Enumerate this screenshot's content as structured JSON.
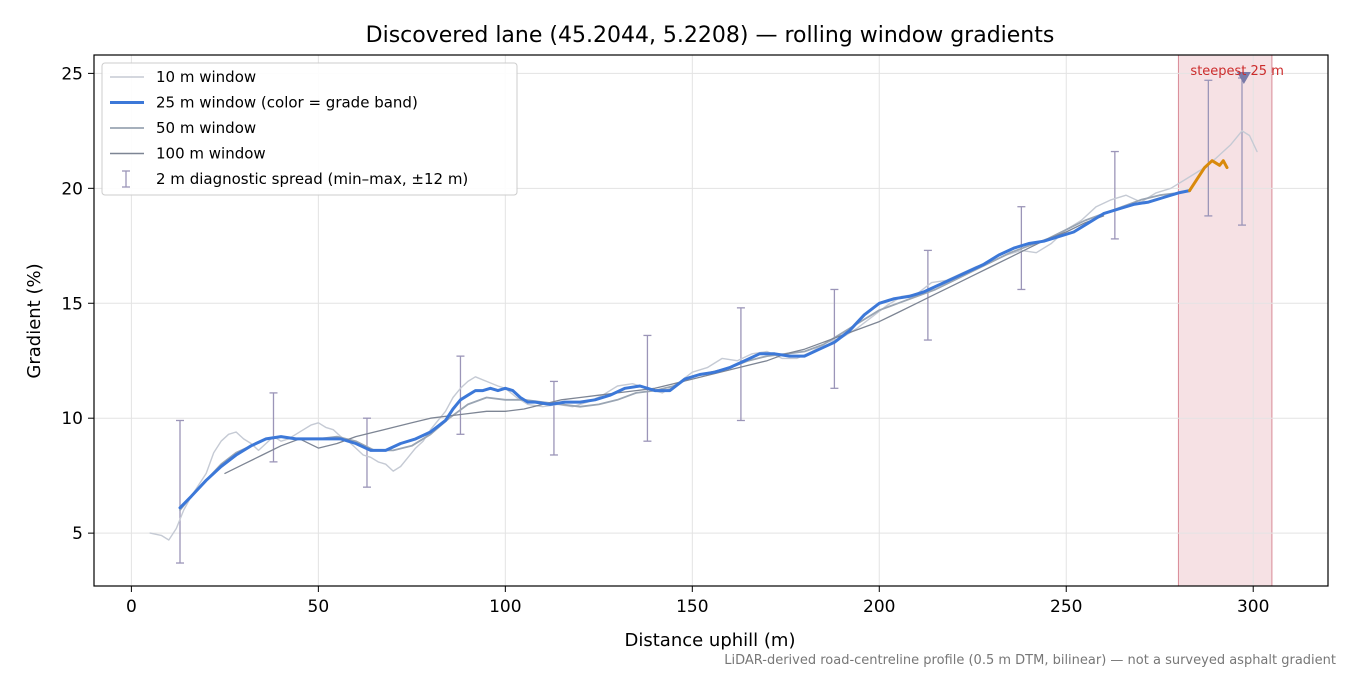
{
  "chart_data": {
    "type": "line",
    "title": "Discovered lane (45.2044, 5.2208) — rolling window gradients",
    "xlabel": "Distance uphill (m)",
    "ylabel": "Gradient (%)",
    "xlim": [
      -10,
      320
    ],
    "ylim": [
      2.7,
      25.8
    ],
    "xticks": [
      0,
      50,
      100,
      150,
      200,
      250,
      300
    ],
    "yticks": [
      5,
      10,
      15,
      20,
      25
    ],
    "grid": true,
    "legend_position": "top-left",
    "footnote": "LiDAR-derived road-centreline profile (0.5 m DTM, bilinear) — not a surveyed asphalt gradient",
    "highlight": {
      "x_start": 280,
      "x_end": 305,
      "label": "steepest 25 m",
      "marker_x": 297.5,
      "marker_y": 24.8,
      "color": "#e9b3bb",
      "label_color": "#cc2b2b"
    },
    "legend": [
      {
        "label": "10 m window",
        "style": "thin-light"
      },
      {
        "label": "25 m window (color = grade band)",
        "style": "thick-blue"
      },
      {
        "label": "50 m window",
        "style": "medium-gray"
      },
      {
        "label": "100 m window",
        "style": "dark-gray"
      },
      {
        "label": "2 m diagnostic spread (min–max, ±12 m)",
        "style": "errorbar"
      }
    ],
    "series": [
      {
        "name": "10 m window",
        "color": "#c5cad4",
        "x": [
          5,
          8,
          10,
          12,
          14,
          16,
          18,
          20,
          22,
          24,
          26,
          28,
          30,
          32,
          34,
          36,
          38,
          40,
          42,
          44,
          46,
          48,
          50,
          52,
          54,
          56,
          58,
          60,
          62,
          64,
          66,
          68,
          70,
          72,
          74,
          76,
          78,
          80,
          82,
          84,
          86,
          88,
          90,
          92,
          95,
          98,
          100,
          103,
          106,
          110,
          114,
          118,
          122,
          126,
          130,
          134,
          138,
          142,
          146,
          150,
          154,
          158,
          162,
          166,
          170,
          174,
          178,
          182,
          186,
          190,
          194,
          198,
          202,
          206,
          210,
          214,
          218,
          222,
          226,
          230,
          234,
          238,
          242,
          246,
          250,
          254,
          258,
          262,
          266,
          270,
          274,
          278,
          282,
          286,
          290,
          294,
          297,
          299,
          301
        ],
        "y": [
          5.0,
          4.9,
          4.7,
          5.2,
          6.0,
          6.6,
          7.1,
          7.6,
          8.5,
          9.0,
          9.3,
          9.4,
          9.1,
          8.9,
          8.6,
          8.9,
          9.2,
          9.0,
          9.1,
          9.3,
          9.5,
          9.7,
          9.8,
          9.6,
          9.5,
          9.2,
          9.0,
          8.7,
          8.4,
          8.3,
          8.1,
          8.0,
          7.7,
          7.9,
          8.3,
          8.7,
          9.0,
          9.5,
          9.9,
          10.3,
          10.9,
          11.3,
          11.6,
          11.8,
          11.6,
          11.4,
          11.3,
          10.9,
          10.6,
          10.5,
          10.6,
          10.5,
          10.7,
          11.0,
          11.4,
          11.5,
          11.3,
          11.1,
          11.5,
          12.0,
          12.2,
          12.6,
          12.5,
          12.8,
          12.9,
          12.6,
          12.6,
          12.9,
          13.3,
          13.5,
          13.9,
          14.4,
          14.9,
          15.3,
          15.4,
          15.9,
          16.0,
          16.3,
          16.6,
          16.8,
          17.1,
          17.3,
          17.2,
          17.6,
          18.2,
          18.6,
          19.2,
          19.5,
          19.7,
          19.4,
          19.8,
          20.0,
          20.4,
          20.8,
          21.3,
          21.9,
          22.5,
          22.3,
          21.6
        ]
      },
      {
        "name": "50 m window",
        "color": "#9aa5b3",
        "x": [
          13,
          16,
          20,
          24,
          28,
          32,
          36,
          40,
          45,
          50,
          55,
          60,
          65,
          70,
          75,
          80,
          85,
          90,
          95,
          100,
          105,
          110,
          115,
          120,
          125,
          130,
          135,
          140,
          145,
          150,
          155,
          160,
          165,
          170,
          175,
          180,
          185,
          190,
          195,
          200,
          205,
          210,
          215,
          220,
          225,
          230,
          235,
          240,
          245,
          250,
          255,
          260,
          265,
          270,
          275,
          280
        ],
        "y": [
          6.0,
          6.6,
          7.3,
          8.0,
          8.5,
          8.8,
          9.1,
          9.2,
          9.1,
          9.1,
          9.2,
          9.0,
          8.6,
          8.6,
          8.8,
          9.3,
          10.0,
          10.6,
          10.9,
          10.8,
          10.8,
          10.7,
          10.6,
          10.5,
          10.6,
          10.8,
          11.1,
          11.2,
          11.4,
          11.8,
          12.0,
          12.2,
          12.5,
          12.7,
          12.8,
          12.9,
          13.2,
          13.7,
          14.2,
          14.7,
          15.0,
          15.3,
          15.6,
          16.0,
          16.4,
          16.8,
          17.2,
          17.5,
          17.8,
          18.2,
          18.6,
          18.9,
          19.2,
          19.5,
          19.7,
          19.8
        ]
      },
      {
        "name": "100 m window",
        "color": "#7d8594",
        "x": [
          25,
          30,
          35,
          40,
          45,
          50,
          55,
          60,
          65,
          70,
          75,
          80,
          85,
          90,
          95,
          100,
          105,
          110,
          115,
          120,
          125,
          130,
          135,
          140,
          145,
          150,
          155,
          160,
          165,
          170,
          175,
          180,
          185,
          190,
          195,
          200,
          205,
          210,
          215,
          220,
          225,
          230,
          235,
          240,
          245,
          250,
          255,
          260
        ],
        "y": [
          7.6,
          8.0,
          8.4,
          8.8,
          9.1,
          8.7,
          8.9,
          9.2,
          9.4,
          9.6,
          9.8,
          10.0,
          10.1,
          10.2,
          10.3,
          10.3,
          10.4,
          10.6,
          10.8,
          10.9,
          11.0,
          11.1,
          11.2,
          11.3,
          11.5,
          11.7,
          11.9,
          12.1,
          12.3,
          12.5,
          12.8,
          13.0,
          13.3,
          13.6,
          13.9,
          14.2,
          14.6,
          15.0,
          15.4,
          15.8,
          16.2,
          16.6,
          17.0,
          17.4,
          17.8,
          18.1,
          18.5,
          18.8
        ]
      },
      {
        "name": "25 m window (color = grade band)",
        "color": "#3c78d8",
        "x": [
          13,
          16,
          20,
          24,
          28,
          32,
          36,
          40,
          44,
          48,
          52,
          56,
          60,
          64,
          68,
          72,
          76,
          80,
          84,
          86,
          88,
          90,
          92,
          94,
          96,
          98,
          100,
          102,
          104,
          106,
          108,
          112,
          116,
          120,
          124,
          128,
          132,
          136,
          140,
          144,
          148,
          152,
          156,
          160,
          164,
          168,
          172,
          176,
          180,
          184,
          188,
          192,
          196,
          200,
          204,
          208,
          212,
          216,
          220,
          224,
          228,
          232,
          236,
          240,
          244,
          248,
          252,
          256,
          260,
          264,
          268,
          272,
          276,
          280,
          283
        ],
        "y": [
          6.1,
          6.6,
          7.3,
          7.9,
          8.4,
          8.8,
          9.1,
          9.2,
          9.1,
          9.1,
          9.1,
          9.1,
          8.9,
          8.6,
          8.6,
          8.9,
          9.1,
          9.4,
          9.9,
          10.4,
          10.8,
          11.0,
          11.2,
          11.2,
          11.3,
          11.2,
          11.3,
          11.2,
          10.9,
          10.7,
          10.7,
          10.6,
          10.7,
          10.7,
          10.8,
          11.0,
          11.3,
          11.4,
          11.2,
          11.2,
          11.7,
          11.9,
          12.0,
          12.2,
          12.5,
          12.8,
          12.8,
          12.7,
          12.7,
          13.0,
          13.3,
          13.8,
          14.5,
          15.0,
          15.2,
          15.3,
          15.5,
          15.8,
          16.1,
          16.4,
          16.7,
          17.1,
          17.4,
          17.6,
          17.7,
          17.9,
          18.1,
          18.5,
          18.9,
          19.1,
          19.3,
          19.4,
          19.6,
          19.8,
          19.9
        ]
      },
      {
        "name": "",
        "color": "#d98a0b",
        "x": [
          283,
          285,
          287,
          289,
          291,
          292,
          293
        ],
        "y": [
          19.9,
          20.4,
          20.9,
          21.2,
          21.0,
          21.2,
          20.9
        ]
      }
    ],
    "errorbars": {
      "name": "2 m diagnostic spread (min–max, ±12 m)",
      "color": "#9b95b8",
      "points": [
        {
          "x": 13,
          "min": 3.7,
          "max": 9.9
        },
        {
          "x": 38,
          "min": 8.1,
          "max": 11.1
        },
        {
          "x": 63,
          "min": 7.0,
          "max": 10.0
        },
        {
          "x": 88,
          "min": 9.3,
          "max": 12.7
        },
        {
          "x": 113,
          "min": 8.4,
          "max": 11.6
        },
        {
          "x": 138,
          "min": 9.0,
          "max": 13.6
        },
        {
          "x": 163,
          "min": 9.9,
          "max": 14.8
        },
        {
          "x": 188,
          "min": 11.3,
          "max": 15.6
        },
        {
          "x": 213,
          "min": 13.4,
          "max": 17.3
        },
        {
          "x": 238,
          "min": 15.6,
          "max": 19.2
        },
        {
          "x": 263,
          "min": 17.8,
          "max": 21.6
        },
        {
          "x": 288,
          "min": 18.8,
          "max": 24.7
        },
        {
          "x": 297,
          "min": 18.4,
          "max": 24.8
        }
      ]
    }
  }
}
